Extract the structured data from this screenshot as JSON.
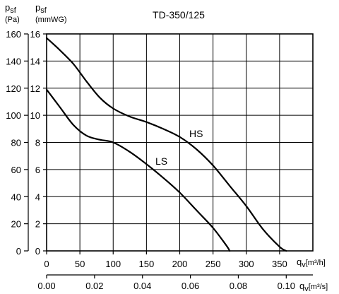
{
  "chart_data": {
    "type": "line",
    "title": "TD-350/125",
    "x_primary": {
      "label_var": "q",
      "label_sub": "v",
      "label_unit": "[m³/h]",
      "ticks": [
        0,
        50,
        100,
        150,
        200,
        250,
        300,
        350
      ],
      "range": [
        0,
        400
      ]
    },
    "x_secondary": {
      "label_var": "q",
      "label_sub": "v",
      "label_unit": "[m³/s]",
      "ticks": [
        "0.00",
        "0.02",
        "0.04",
        "0.06",
        "0.08",
        "0.10"
      ],
      "tick_values": [
        0,
        0.02,
        0.04,
        0.06,
        0.08,
        0.1
      ]
    },
    "y_primary": {
      "label_var": "p",
      "label_sub": "sf",
      "label_unit": "(Pa)",
      "ticks": [
        0,
        20,
        40,
        60,
        80,
        100,
        120,
        140,
        160
      ],
      "range": [
        0,
        160
      ]
    },
    "y_secondary": {
      "label_var": "p",
      "label_sub": "sf",
      "label_unit": "(mmWG)",
      "ticks": [
        0,
        2,
        4,
        6,
        8,
        10,
        12,
        14,
        16
      ]
    },
    "grid": true,
    "series": [
      {
        "name": "HS",
        "x": [
          0,
          20,
          40,
          60,
          80,
          100,
          125,
          150,
          175,
          200,
          225,
          250,
          275,
          300,
          325,
          350,
          360
        ],
        "y": [
          157,
          148,
          138,
          125,
          113,
          105,
          99,
          95,
          90,
          84,
          75,
          63,
          48,
          33,
          16,
          3,
          0
        ]
      },
      {
        "name": "LS",
        "x": [
          0,
          20,
          40,
          60,
          80,
          100,
          125,
          150,
          175,
          200,
          225,
          250,
          270,
          275
        ],
        "y": [
          119,
          106,
          93,
          85,
          82,
          80,
          73,
          64,
          54,
          43,
          30,
          17,
          4,
          0
        ]
      }
    ]
  }
}
